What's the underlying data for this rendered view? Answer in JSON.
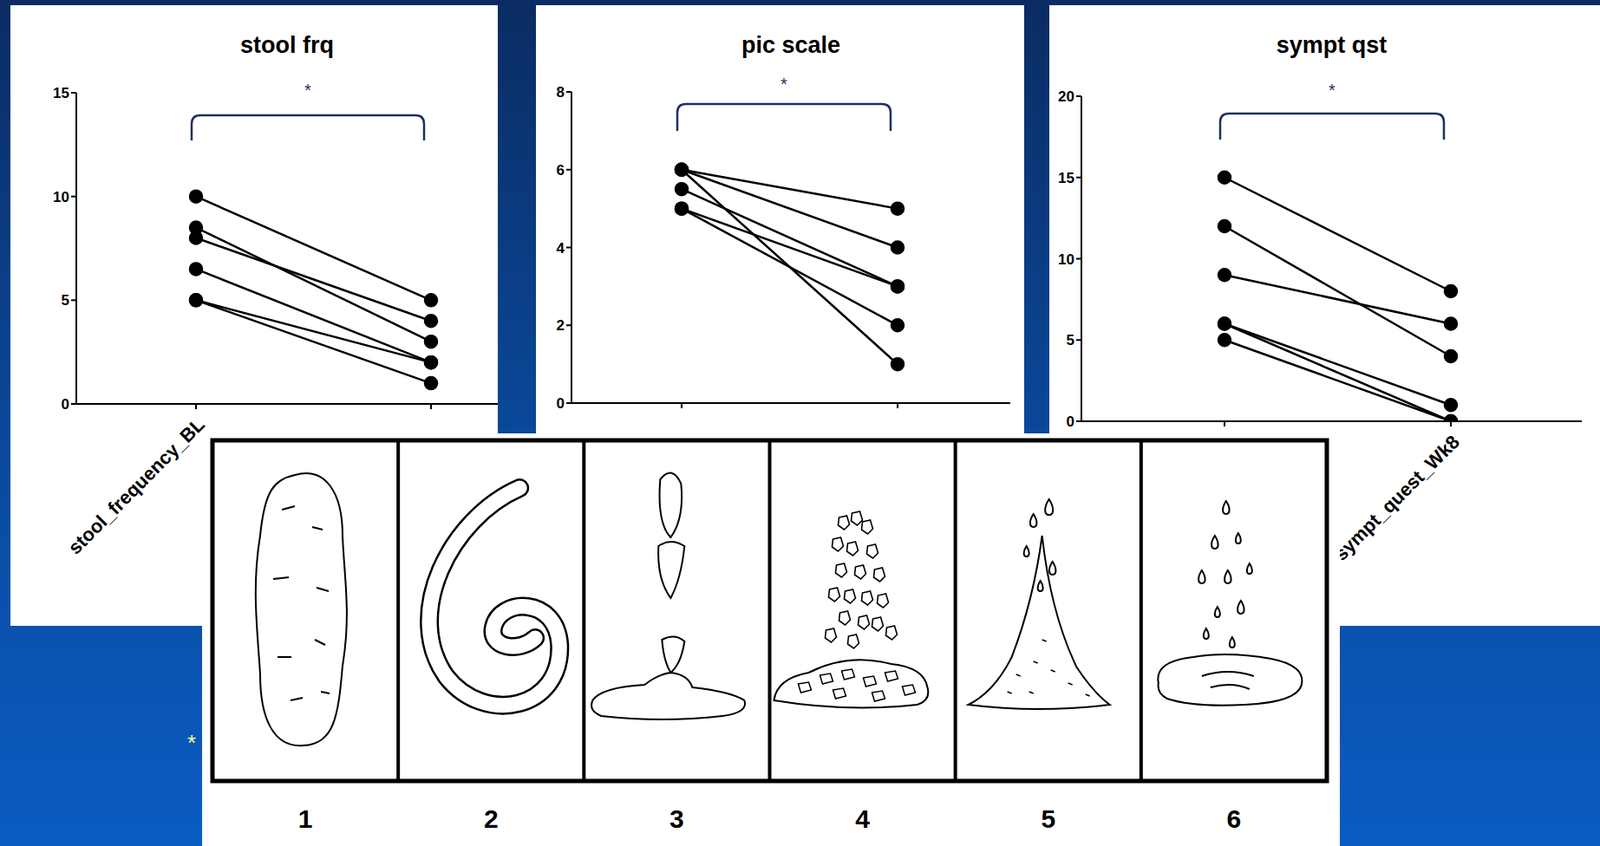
{
  "chart_data": [
    {
      "type": "line",
      "title": "stool frq",
      "categories": [
        "stool_frequency_BL",
        null
      ],
      "series": [
        {
          "values": [
            10,
            5
          ]
        },
        {
          "values": [
            8.5,
            3
          ]
        },
        {
          "values": [
            8,
            4
          ]
        },
        {
          "values": [
            6.5,
            2
          ]
        },
        {
          "values": [
            5,
            2
          ]
        },
        {
          "values": [
            5,
            1
          ]
        }
      ],
      "color": "#000000",
      "marker": "circle",
      "ylim": [
        0,
        15
      ],
      "yticks": [
        0,
        5,
        10,
        15
      ],
      "grid": false,
      "annotations": [
        "*"
      ]
    },
    {
      "type": "line",
      "title": "pic scale",
      "categories": [
        null,
        null
      ],
      "series": [
        {
          "values": [
            6,
            5
          ]
        },
        {
          "values": [
            6,
            4
          ]
        },
        {
          "values": [
            6,
            1
          ]
        },
        {
          "values": [
            5.5,
            3
          ]
        },
        {
          "values": [
            5,
            3
          ]
        },
        {
          "values": [
            5,
            2
          ]
        }
      ],
      "color": "#000000",
      "marker": "circle",
      "ylim": [
        0,
        8
      ],
      "yticks": [
        0,
        2,
        4,
        6,
        8
      ],
      "grid": false,
      "annotations": [
        "*"
      ]
    },
    {
      "type": "line",
      "title": "sympt qst",
      "categories": [
        null,
        "sympt_quest_Wk8"
      ],
      "series": [
        {
          "values": [
            15,
            8
          ]
        },
        {
          "values": [
            12,
            4
          ]
        },
        {
          "values": [
            9,
            6
          ]
        },
        {
          "values": [
            6,
            1
          ]
        },
        {
          "values": [
            6,
            0
          ]
        },
        {
          "values": [
            5,
            0
          ]
        }
      ],
      "color": "#000000",
      "marker": "circle",
      "ylim": [
        0,
        20
      ],
      "yticks": [
        0,
        5,
        10,
        15,
        20
      ],
      "grid": false,
      "annotations": [
        "*"
      ]
    }
  ],
  "annotations": [
    "*"
  ],
  "stool_scale": {
    "labels": [
      1,
      2,
      3,
      4,
      5,
      6
    ]
  }
}
